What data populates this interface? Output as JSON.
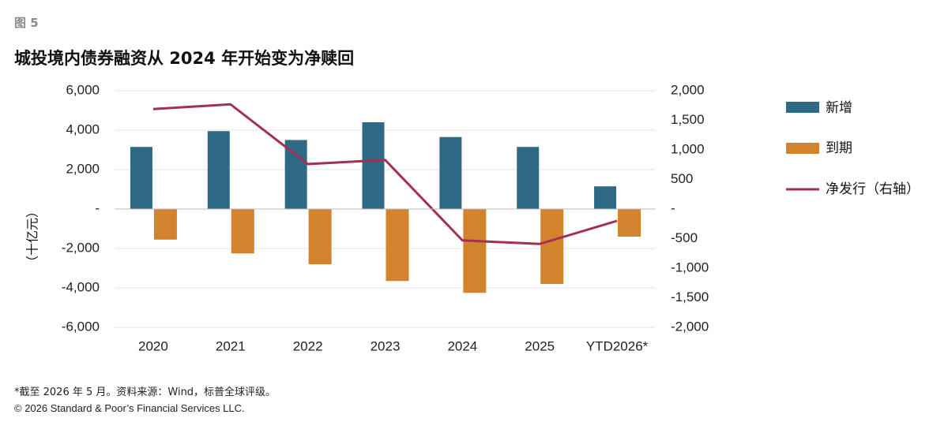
{
  "figure_label": "图 5",
  "title": "城投境内债券融资从 2024 年开始变为净赎回",
  "note": "*截至 2026 年 5 月。资料来源：Wind，标普全球评级。",
  "copyright": "© 2026 Standard & Poor’s Financial Services LLC.",
  "colors": {
    "new": "#2e6a86",
    "maturity": "#d3822d",
    "net": "#a3304f",
    "grid": "#e3e3e3",
    "axis": "#bbbbbb"
  },
  "chart_data": {
    "type": "bar",
    "categories": [
      "2020",
      "2021",
      "2022",
      "2023",
      "2024",
      "2025",
      "YTD2026*"
    ],
    "ylabel": "（十亿元）",
    "ylim": [
      -6000,
      6000
    ],
    "y_ticks": [
      6000,
      4000,
      2000,
      0,
      -2000,
      -4000,
      -6000
    ],
    "y_tick_labels": [
      "6,000",
      "4,000",
      "2,000",
      "-",
      "-2,000",
      "-4,000",
      "-6,000"
    ],
    "y2lim": [
      -2000,
      2000
    ],
    "y2_ticks": [
      2000,
      1500,
      1000,
      500,
      0,
      -500,
      -1000,
      -1500,
      -2000
    ],
    "y2_tick_labels": [
      "2,000",
      "1,500",
      "1,000",
      "500",
      "-",
      "-500",
      "-1,000",
      "-1,500",
      "-2,000"
    ],
    "grid": true,
    "legend_position": "right",
    "series": [
      {
        "name": "新增",
        "type": "bar",
        "axis": "left",
        "values": [
          3150,
          3950,
          3500,
          4400,
          3650,
          3150,
          1150
        ]
      },
      {
        "name": "到期",
        "type": "bar",
        "axis": "left",
        "values": [
          -1550,
          -2250,
          -2800,
          -3650,
          -4250,
          -3800,
          -1400
        ]
      },
      {
        "name": "净发行（右轴）",
        "type": "line",
        "axis": "right",
        "values": [
          1690,
          1770,
          760,
          830,
          -530,
          -590,
          -200
        ]
      }
    ]
  }
}
